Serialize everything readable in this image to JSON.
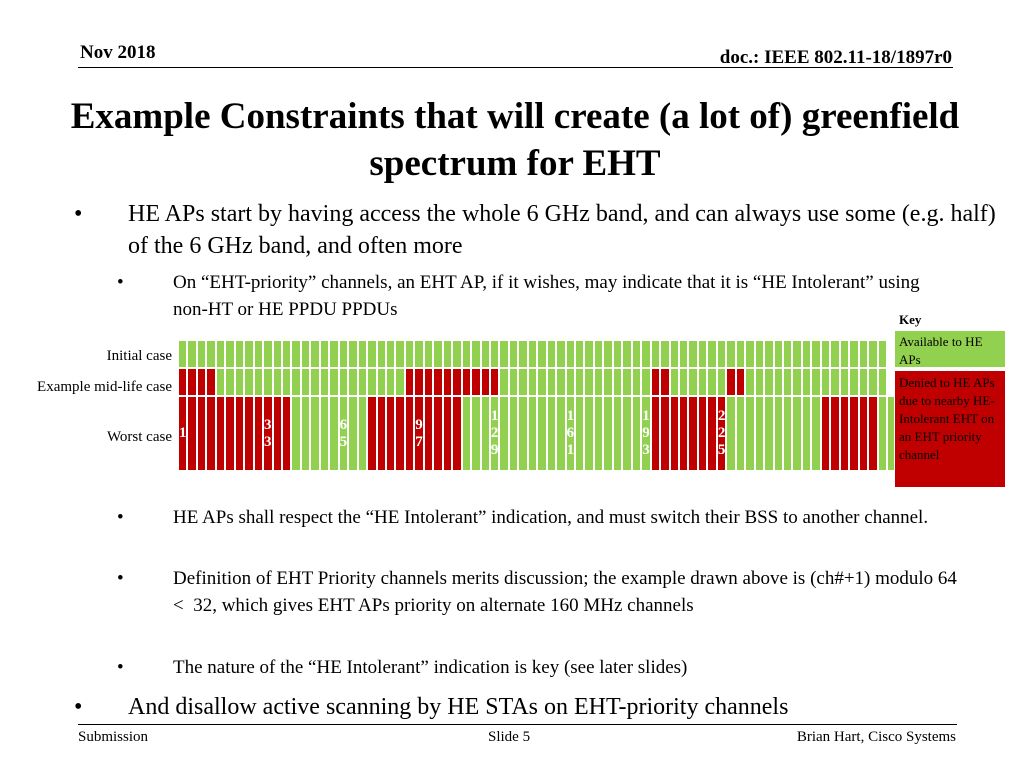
{
  "header": {
    "date": "Nov 2018",
    "doc": "doc.: IEEE 802.11-18/1897r0"
  },
  "title": "Example Constraints that will create (a lot of) greenfield spectrum for EHT",
  "bullets": {
    "b1": "HE APs start by having access the whole 6 GHz band, and can always use some (e.g. half) of the 6 GHz band, and often more",
    "b2": "On “EHT-priority” channels, an EHT AP, if it wishes, may indicate that it is “HE Intolerant” using non-HT or HE PPDU PPDUs",
    "b3": "HE APs shall respect the “HE Intolerant” indication, and must switch their BSS to another channel.",
    "b4": "Definition of EHT Priority channels merits discussion; the example drawn above is (ch#+1) modulo 64 <  32, which gives EHT APs priority on alternate 160 MHz channels",
    "b5": "The nature of the “HE Intolerant” indication is key (see later slides)",
    "b6": "And disallow active scanning by HE STAs on EHT-priority channels",
    "dot": "•"
  },
  "diagram": {
    "row_labels": [
      "Initial case",
      "Example mid-life case",
      "Worst case"
    ],
    "channel_numbers": [
      "1",
      "33",
      "65",
      "97",
      "129",
      "161",
      "193",
      "225"
    ],
    "colors": {
      "available": "#92d050",
      "denied": "#c00000",
      "number_on_denied": "#ffffff",
      "number_on_available": "#ffffff"
    },
    "rows": [
      "GGGGGGGGGGGGGGGGGGGGGGGGGGGGGGGGGGGGGGGGGGGGGGGGGGGGGGGGGGGGGGGGGGGGGGGGGGG",
      "RRRRGGGGGGGGGGGGGGGGGGGGRRRRRRRRRRGGGGGGGGGGGGGGGGRRGGGGGGRRGGGGGGGGGGGGGGG",
      "RRRRRRRRRRRRGGGGGGGGRRRRRRRRRRGGGGGGGGGGGGGGGGGGGGRRRRRRRRGGGGGGGGGGRRRRRRGG"
    ]
  },
  "key": {
    "title": "Key",
    "available": "Available to HE APs",
    "denied": "Denied to HE APs due to nearby HE-Intolerant EHT on an EHT priority channel"
  },
  "footer": {
    "left": "Submission",
    "center": "Slide 5",
    "right": "Brian Hart, Cisco Systems"
  }
}
